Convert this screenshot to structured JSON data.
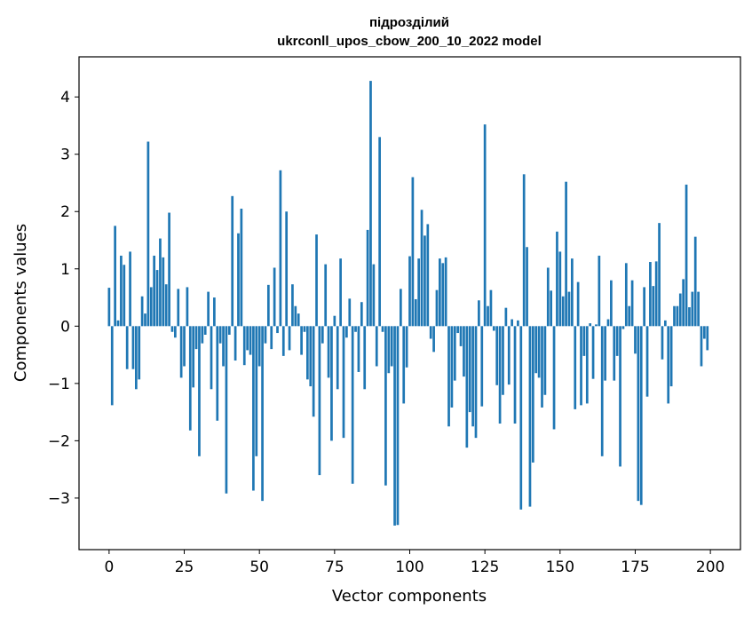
{
  "chart_data": {
    "type": "bar",
    "title": "підрозділий\nukrconll_upos_cbow_200_10_2022 model",
    "title_lines": [
      "підрозділий",
      "ukrconll_upos_cbow_200_10_2022 model"
    ],
    "xlabel": "Vector components",
    "ylabel": "Components values",
    "xlim": [
      -10,
      210
    ],
    "ylim": [
      -3.9,
      4.7
    ],
    "xticks": [
      0,
      25,
      50,
      75,
      100,
      125,
      150,
      175,
      200
    ],
    "yticks": [
      -3,
      -2,
      -1,
      0,
      1,
      2,
      3,
      4
    ],
    "bar_color": "#1f77b4",
    "grid": false,
    "x": [
      0,
      1,
      2,
      3,
      4,
      5,
      6,
      7,
      8,
      9,
      10,
      11,
      12,
      13,
      14,
      15,
      16,
      17,
      18,
      19,
      20,
      21,
      22,
      23,
      24,
      25,
      26,
      27,
      28,
      29,
      30,
      31,
      32,
      33,
      34,
      35,
      36,
      37,
      38,
      39,
      40,
      41,
      42,
      43,
      44,
      45,
      46,
      47,
      48,
      49,
      50,
      51,
      52,
      53,
      54,
      55,
      56,
      57,
      58,
      59,
      60,
      61,
      62,
      63,
      64,
      65,
      66,
      67,
      68,
      69,
      70,
      71,
      72,
      73,
      74,
      75,
      76,
      77,
      78,
      79,
      80,
      81,
      82,
      83,
      84,
      85,
      86,
      87,
      88,
      89,
      90,
      91,
      92,
      93,
      94,
      95,
      96,
      97,
      98,
      99,
      100,
      101,
      102,
      103,
      104,
      105,
      106,
      107,
      108,
      109,
      110,
      111,
      112,
      113,
      114,
      115,
      116,
      117,
      118,
      119,
      120,
      121,
      122,
      123,
      124,
      125,
      126,
      127,
      128,
      129,
      130,
      131,
      132,
      133,
      134,
      135,
      136,
      137,
      138,
      139,
      140,
      141,
      142,
      143,
      144,
      145,
      146,
      147,
      148,
      149,
      150,
      151,
      152,
      153,
      154,
      155,
      156,
      157,
      158,
      159,
      160,
      161,
      162,
      163,
      164,
      165,
      166,
      167,
      168,
      169,
      170,
      171,
      172,
      173,
      174,
      175,
      176,
      177,
      178,
      179,
      180,
      181,
      182,
      183,
      184,
      185,
      186,
      187,
      188,
      189,
      190,
      191,
      192,
      193,
      194,
      195,
      196,
      197,
      198,
      199
    ],
    "values": [
      0.67,
      -1.38,
      1.75,
      0.1,
      1.23,
      1.07,
      -0.75,
      1.3,
      -0.75,
      -1.1,
      -0.93,
      0.52,
      0.22,
      3.22,
      0.68,
      1.23,
      0.98,
      1.53,
      1.2,
      0.73,
      1.98,
      -0.1,
      -0.2,
      0.65,
      -0.9,
      -0.7,
      0.68,
      -1.82,
      -1.07,
      -0.4,
      -2.27,
      -0.3,
      -0.15,
      0.6,
      -1.1,
      0.5,
      -1.65,
      -0.3,
      -0.7,
      -2.92,
      -0.15,
      2.27,
      -0.6,
      1.62,
      2.05,
      -0.68,
      -0.42,
      -0.5,
      -2.87,
      -2.27,
      -0.7,
      -3.05,
      -0.3,
      0.72,
      -0.4,
      1.02,
      -0.12,
      2.72,
      -0.52,
      2.0,
      -0.42,
      0.73,
      0.35,
      0.22,
      -0.5,
      -0.1,
      -0.93,
      -1.05,
      -1.58,
      1.6,
      -2.6,
      -0.3,
      1.08,
      -0.9,
      -2.0,
      0.18,
      -1.1,
      1.18,
      -1.95,
      -0.2,
      0.48,
      -2.75,
      -0.1,
      -0.8,
      0.42,
      -1.1,
      1.68,
      4.28,
      1.08,
      -0.7,
      3.3,
      -0.1,
      -2.78,
      -0.82,
      -0.7,
      -3.48,
      -3.47,
      0.65,
      -1.35,
      -0.72,
      1.22,
      2.6,
      0.47,
      1.18,
      2.03,
      1.58,
      1.78,
      -0.22,
      -0.45,
      0.63,
      1.18,
      1.1,
      1.2,
      -1.75,
      -1.42,
      -0.95,
      -0.12,
      -0.35,
      -0.88,
      -2.12,
      -1.5,
      -1.75,
      -1.95,
      0.45,
      -1.4,
      3.52,
      0.35,
      0.63,
      -0.08,
      -1.03,
      -1.7,
      -1.2,
      0.32,
      -1.02,
      0.12,
      -1.7,
      0.1,
      -3.2,
      2.65,
      1.38,
      -3.15,
      -2.38,
      -0.82,
      -0.9,
      -1.42,
      -1.2,
      1.02,
      0.62,
      -1.8,
      1.65,
      1.3,
      0.52,
      2.52,
      0.6,
      1.18,
      -1.45,
      0.77,
      -1.38,
      -0.52,
      -1.35,
      0.05,
      -0.92,
      0.03,
      1.23,
      -2.27,
      -0.95,
      0.12,
      0.8,
      -0.95,
      -0.52,
      -2.45,
      -0.05,
      1.1,
      0.35,
      0.8,
      -0.48,
      -3.05,
      -3.12,
      0.68,
      -1.23,
      1.12,
      0.7,
      1.13,
      1.8,
      -0.58,
      0.1,
      -1.35,
      -1.05,
      0.35,
      0.35,
      0.57,
      0.82,
      2.47,
      0.33,
      0.6,
      1.56,
      0.6,
      -0.7,
      -0.22,
      -0.42
    ]
  }
}
